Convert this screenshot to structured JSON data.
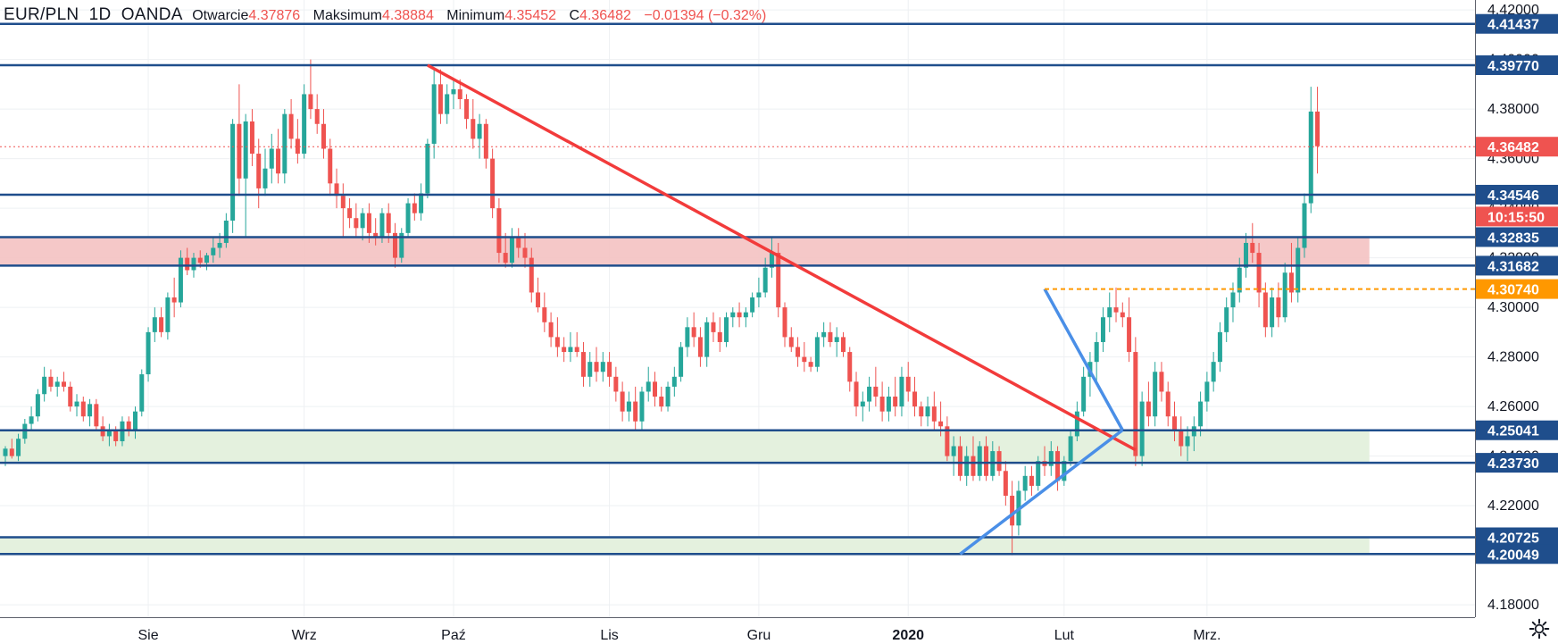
{
  "header": {
    "symbol": "EUR/PLN",
    "interval": "1D",
    "broker": "OANDA",
    "open_label": "Otwarcie",
    "open_value": "4.37876",
    "high_label": "Maksimum",
    "high_value": "4.38884",
    "low_label": "Minimum",
    "low_value": "4.35452",
    "close_label": "C",
    "close_value": "4.36482",
    "change_value": "−0.01394 (−0.32%)"
  },
  "colors": {
    "up": "#26a69a",
    "down": "#ef5350",
    "level_line": "#1f4e8c",
    "resistance_zone": "#f4c2c2",
    "support_zone": "#e3f0dc",
    "trend_red": "#f23b3b",
    "trend_blue": "#4a8fe7",
    "breakout_orange": "#ff9800"
  },
  "chart_data": {
    "type": "candlestick",
    "title": "",
    "ylim": [
      4.175,
      4.424
    ],
    "x_tick_labels": [
      "Sie",
      "Wrz",
      "Paź",
      "Lis",
      "Gru",
      "2020",
      "Lut",
      "Mrz."
    ],
    "y_tick_labels": [
      "4.42000",
      "4.40000",
      "4.38000",
      "4.36000",
      "4.34000",
      "4.32000",
      "4.30000",
      "4.28000",
      "4.26000",
      "4.24000",
      "4.22000",
      "4.20000",
      "4.18000"
    ],
    "y_ticks": [
      4.42,
      4.4,
      4.38,
      4.36,
      4.34,
      4.32,
      4.3,
      4.28,
      4.26,
      4.24,
      4.22,
      4.2,
      4.18
    ],
    "levels": [
      {
        "value": 4.41437,
        "label": "4.41437"
      },
      {
        "value": 4.3977,
        "label": "4.39770"
      },
      {
        "value": 4.34546,
        "label": "4.34546"
      },
      {
        "value": 4.32835,
        "label": "4.32835"
      },
      {
        "value": 4.31682,
        "label": "4.31682"
      },
      {
        "value": 4.25041,
        "label": "4.25041"
      },
      {
        "value": 4.2373,
        "label": "4.23730"
      },
      {
        "value": 4.20725,
        "label": "4.20725"
      },
      {
        "value": 4.20049,
        "label": "4.20049"
      }
    ],
    "breakout_level": {
      "value": 4.3074,
      "label": "4.30740"
    },
    "last_price": {
      "value": 4.36482,
      "label": "4.36482",
      "countdown": "10:15:50"
    },
    "zones": [
      {
        "type": "resistance",
        "from": 4.31682,
        "to": 4.32835
      },
      {
        "type": "support",
        "from": 4.2373,
        "to": 4.25041
      },
      {
        "type": "support",
        "from": 4.20049,
        "to": 4.20725
      }
    ],
    "candles": [
      [
        4.24,
        4.244,
        4.236,
        4.243
      ],
      [
        4.243,
        4.247,
        4.239,
        4.24
      ],
      [
        4.24,
        4.249,
        4.238,
        4.247
      ],
      [
        4.247,
        4.255,
        4.245,
        4.253
      ],
      [
        4.253,
        4.26,
        4.25,
        4.256
      ],
      [
        4.256,
        4.267,
        4.254,
        4.265
      ],
      [
        4.265,
        4.276,
        4.262,
        4.272
      ],
      [
        4.272,
        4.275,
        4.266,
        4.268
      ],
      [
        4.268,
        4.272,
        4.264,
        4.27
      ],
      [
        4.27,
        4.274,
        4.266,
        4.268
      ],
      [
        4.268,
        4.27,
        4.258,
        4.26
      ],
      [
        4.26,
        4.265,
        4.256,
        4.262
      ],
      [
        4.262,
        4.264,
        4.254,
        4.256
      ],
      [
        4.256,
        4.263,
        4.252,
        4.261
      ],
      [
        4.261,
        4.263,
        4.25,
        4.252
      ],
      [
        4.252,
        4.256,
        4.246,
        4.248
      ],
      [
        4.248,
        4.253,
        4.244,
        4.25
      ],
      [
        4.25,
        4.252,
        4.244,
        4.246
      ],
      [
        4.246,
        4.256,
        4.244,
        4.254
      ],
      [
        4.254,
        4.256,
        4.248,
        4.25
      ],
      [
        4.25,
        4.26,
        4.247,
        4.258
      ],
      [
        4.258,
        4.275,
        4.256,
        4.273
      ],
      [
        4.273,
        4.292,
        4.27,
        4.29
      ],
      [
        4.29,
        4.3,
        4.286,
        4.296
      ],
      [
        4.296,
        4.3,
        4.288,
        4.29
      ],
      [
        4.29,
        4.306,
        4.287,
        4.304
      ],
      [
        4.304,
        4.312,
        4.296,
        4.302
      ],
      [
        4.302,
        4.323,
        4.3,
        4.32
      ],
      [
        4.32,
        4.324,
        4.313,
        4.315
      ],
      [
        4.315,
        4.322,
        4.312,
        4.32
      ],
      [
        4.32,
        4.323,
        4.316,
        4.318
      ],
      [
        4.318,
        4.322,
        4.315,
        4.321
      ],
      [
        4.321,
        4.328,
        4.318,
        4.324
      ],
      [
        4.324,
        4.33,
        4.32,
        4.326
      ],
      [
        4.326,
        4.338,
        4.324,
        4.335
      ],
      [
        4.335,
        4.376,
        4.33,
        4.374
      ],
      [
        4.374,
        4.39,
        4.345,
        4.352
      ],
      [
        4.352,
        4.378,
        4.328,
        4.375
      ],
      [
        4.375,
        4.38,
        4.357,
        4.362
      ],
      [
        4.362,
        4.368,
        4.34,
        4.348
      ],
      [
        4.348,
        4.364,
        4.345,
        4.356
      ],
      [
        4.356,
        4.37,
        4.35,
        4.364
      ],
      [
        4.364,
        4.372,
        4.35,
        4.354
      ],
      [
        4.354,
        4.38,
        4.35,
        4.378
      ],
      [
        4.378,
        4.384,
        4.364,
        4.368
      ],
      [
        4.368,
        4.376,
        4.358,
        4.362
      ],
      [
        4.362,
        4.39,
        4.36,
        4.386
      ],
      [
        4.386,
        4.4,
        4.376,
        4.38
      ],
      [
        4.38,
        4.386,
        4.37,
        4.374
      ],
      [
        4.374,
        4.38,
        4.36,
        4.364
      ],
      [
        4.364,
        4.368,
        4.345,
        4.35
      ],
      [
        4.35,
        4.356,
        4.34,
        4.345
      ],
      [
        4.345,
        4.35,
        4.328,
        4.34
      ],
      [
        4.34,
        4.344,
        4.332,
        4.336
      ],
      [
        4.336,
        4.342,
        4.328,
        4.332
      ],
      [
        4.332,
        4.34,
        4.327,
        4.338
      ],
      [
        4.338,
        4.342,
        4.326,
        4.33
      ],
      [
        4.33,
        4.336,
        4.325,
        4.328
      ],
      [
        4.328,
        4.34,
        4.326,
        4.338
      ],
      [
        4.338,
        4.342,
        4.326,
        4.33
      ],
      [
        4.33,
        4.334,
        4.316,
        4.32
      ],
      [
        4.32,
        4.332,
        4.318,
        4.33
      ],
      [
        4.33,
        4.344,
        4.328,
        4.342
      ],
      [
        4.342,
        4.346,
        4.335,
        4.338
      ],
      [
        4.338,
        4.35,
        4.335,
        4.346
      ],
      [
        4.346,
        4.368,
        4.344,
        4.366
      ],
      [
        4.366,
        4.396,
        4.36,
        4.39
      ],
      [
        4.39,
        4.396,
        4.374,
        4.378
      ],
      [
        4.378,
        4.39,
        4.374,
        4.386
      ],
      [
        4.386,
        4.392,
        4.38,
        4.388
      ],
      [
        4.388,
        4.392,
        4.38,
        4.384
      ],
      [
        4.384,
        4.386,
        4.372,
        4.376
      ],
      [
        4.376,
        4.384,
        4.364,
        4.368
      ],
      [
        4.368,
        4.378,
        4.36,
        4.374
      ],
      [
        4.374,
        4.376,
        4.356,
        4.36
      ],
      [
        4.36,
        4.364,
        4.336,
        4.34
      ],
      [
        4.34,
        4.344,
        4.318,
        4.322
      ],
      [
        4.322,
        4.33,
        4.316,
        4.318
      ],
      [
        4.318,
        4.332,
        4.316,
        4.328
      ],
      [
        4.328,
        4.332,
        4.32,
        4.324
      ],
      [
        4.324,
        4.33,
        4.316,
        4.32
      ],
      [
        4.32,
        4.324,
        4.302,
        4.306
      ],
      [
        4.306,
        4.312,
        4.298,
        4.3
      ],
      [
        4.3,
        4.306,
        4.29,
        4.294
      ],
      [
        4.294,
        4.298,
        4.284,
        4.288
      ],
      [
        4.288,
        4.296,
        4.28,
        4.284
      ],
      [
        4.284,
        4.288,
        4.278,
        4.282
      ],
      [
        4.282,
        4.29,
        4.278,
        4.284
      ],
      [
        4.284,
        4.29,
        4.28,
        4.282
      ],
      [
        4.282,
        4.286,
        4.268,
        4.272
      ],
      [
        4.272,
        4.282,
        4.268,
        4.278
      ],
      [
        4.278,
        4.284,
        4.27,
        4.274
      ],
      [
        4.274,
        4.282,
        4.27,
        4.278
      ],
      [
        4.278,
        4.282,
        4.268,
        4.272
      ],
      [
        4.272,
        4.276,
        4.262,
        4.266
      ],
      [
        4.266,
        4.27,
        4.254,
        4.258
      ],
      [
        4.258,
        4.266,
        4.254,
        4.262
      ],
      [
        4.262,
        4.268,
        4.25,
        4.254
      ],
      [
        4.254,
        4.268,
        4.25,
        4.266
      ],
      [
        4.266,
        4.276,
        4.262,
        4.27
      ],
      [
        4.27,
        4.274,
        4.26,
        4.264
      ],
      [
        4.264,
        4.268,
        4.258,
        4.26
      ],
      [
        4.26,
        4.27,
        4.258,
        4.268
      ],
      [
        4.268,
        4.276,
        4.264,
        4.272
      ],
      [
        4.272,
        4.286,
        4.27,
        4.284
      ],
      [
        4.284,
        4.296,
        4.28,
        4.292
      ],
      [
        4.292,
        4.298,
        4.284,
        4.288
      ],
      [
        4.288,
        4.292,
        4.276,
        4.28
      ],
      [
        4.28,
        4.296,
        4.276,
        4.294
      ],
      [
        4.294,
        4.298,
        4.286,
        4.29
      ],
      [
        4.29,
        4.296,
        4.282,
        4.286
      ],
      [
        4.286,
        4.298,
        4.284,
        4.296
      ],
      [
        4.296,
        4.3,
        4.292,
        4.298
      ],
      [
        4.298,
        4.302,
        4.292,
        4.296
      ],
      [
        4.296,
        4.3,
        4.292,
        4.298
      ],
      [
        4.298,
        4.306,
        4.296,
        4.304
      ],
      [
        4.304,
        4.312,
        4.3,
        4.306
      ],
      [
        4.306,
        4.32,
        4.304,
        4.316
      ],
      [
        4.316,
        4.328,
        4.312,
        4.322
      ],
      [
        4.322,
        4.326,
        4.296,
        4.3
      ],
      [
        4.3,
        4.302,
        4.284,
        4.288
      ],
      [
        4.288,
        4.292,
        4.282,
        4.284
      ],
      [
        4.284,
        4.288,
        4.276,
        4.28
      ],
      [
        4.28,
        4.286,
        4.274,
        4.278
      ],
      [
        4.278,
        4.28,
        4.274,
        4.276
      ],
      [
        4.276,
        4.29,
        4.274,
        4.288
      ],
      [
        4.288,
        4.294,
        4.284,
        4.29
      ],
      [
        4.29,
        4.294,
        4.284,
        4.286
      ],
      [
        4.286,
        4.292,
        4.28,
        4.288
      ],
      [
        4.288,
        4.29,
        4.28,
        4.282
      ],
      [
        4.282,
        4.284,
        4.266,
        4.27
      ],
      [
        4.27,
        4.274,
        4.256,
        4.26
      ],
      [
        4.26,
        4.266,
        4.254,
        4.262
      ],
      [
        4.262,
        4.272,
        4.258,
        4.268
      ],
      [
        4.268,
        4.276,
        4.26,
        4.264
      ],
      [
        4.264,
        4.27,
        4.254,
        4.258
      ],
      [
        4.258,
        4.268,
        4.254,
        4.264
      ],
      [
        4.264,
        4.272,
        4.256,
        4.26
      ],
      [
        4.26,
        4.276,
        4.256,
        4.272
      ],
      [
        4.272,
        4.278,
        4.262,
        4.266
      ],
      [
        4.266,
        4.272,
        4.256,
        4.26
      ],
      [
        4.26,
        4.262,
        4.252,
        4.256
      ],
      [
        4.256,
        4.264,
        4.252,
        4.26
      ],
      [
        4.26,
        4.266,
        4.25,
        4.254
      ],
      [
        4.254,
        4.262,
        4.248,
        4.252
      ],
      [
        4.252,
        4.256,
        4.238,
        4.24
      ],
      [
        4.24,
        4.248,
        4.232,
        4.244
      ],
      [
        4.244,
        4.248,
        4.23,
        4.232
      ],
      [
        4.232,
        4.244,
        4.228,
        4.24
      ],
      [
        4.24,
        4.248,
        4.23,
        4.232
      ],
      [
        4.232,
        4.246,
        4.23,
        4.244
      ],
      [
        4.244,
        4.248,
        4.23,
        4.232
      ],
      [
        4.232,
        4.246,
        4.23,
        4.242
      ],
      [
        4.242,
        4.244,
        4.232,
        4.234
      ],
      [
        4.234,
        4.238,
        4.22,
        4.224
      ],
      [
        4.224,
        4.23,
        4.2,
        4.212
      ],
      [
        4.212,
        4.23,
        4.208,
        4.226
      ],
      [
        4.226,
        4.236,
        4.222,
        4.232
      ],
      [
        4.232,
        4.236,
        4.224,
        4.228
      ],
      [
        4.228,
        4.24,
        4.226,
        4.238
      ],
      [
        4.238,
        4.244,
        4.232,
        4.236
      ],
      [
        4.236,
        4.246,
        4.232,
        4.242
      ],
      [
        4.242,
        4.244,
        4.226,
        4.23
      ],
      [
        4.23,
        4.24,
        4.228,
        4.238
      ],
      [
        4.238,
        4.25,
        4.236,
        4.248
      ],
      [
        4.248,
        4.262,
        4.246,
        4.258
      ],
      [
        4.258,
        4.276,
        4.256,
        4.272
      ],
      [
        4.272,
        4.282,
        4.264,
        4.278
      ],
      [
        4.278,
        4.29,
        4.27,
        4.286
      ],
      [
        4.286,
        4.3,
        4.282,
        4.296
      ],
      [
        4.296,
        4.306,
        4.29,
        4.3
      ],
      [
        4.3,
        4.308,
        4.294,
        4.298
      ],
      [
        4.298,
        4.302,
        4.292,
        4.296
      ],
      [
        4.296,
        4.304,
        4.278,
        4.282
      ],
      [
        4.282,
        4.288,
        4.236,
        4.24
      ],
      [
        4.24,
        4.266,
        4.236,
        4.262
      ],
      [
        4.262,
        4.27,
        4.252,
        4.256
      ],
      [
        4.256,
        4.278,
        4.252,
        4.274
      ],
      [
        4.274,
        4.278,
        4.262,
        4.266
      ],
      [
        4.266,
        4.27,
        4.252,
        4.256
      ],
      [
        4.256,
        4.262,
        4.246,
        4.25
      ],
      [
        4.25,
        4.256,
        4.24,
        4.244
      ],
      [
        4.244,
        4.252,
        4.238,
        4.248
      ],
      [
        4.248,
        4.256,
        4.242,
        4.252
      ],
      [
        4.252,
        4.266,
        4.248,
        4.262
      ],
      [
        4.262,
        4.274,
        4.258,
        4.27
      ],
      [
        4.27,
        4.282,
        4.266,
        4.278
      ],
      [
        4.278,
        4.294,
        4.274,
        4.29
      ],
      [
        4.29,
        4.304,
        4.286,
        4.3
      ],
      [
        4.3,
        4.31,
        4.294,
        4.306
      ],
      [
        4.306,
        4.32,
        4.302,
        4.316
      ],
      [
        4.316,
        4.33,
        4.312,
        4.326
      ],
      [
        4.326,
        4.334,
        4.318,
        4.322
      ],
      [
        4.322,
        4.326,
        4.3,
        4.306
      ],
      [
        4.306,
        4.31,
        4.288,
        4.292
      ],
      [
        4.292,
        4.308,
        4.288,
        4.304
      ],
      [
        4.304,
        4.31,
        4.292,
        4.296
      ],
      [
        4.296,
        4.318,
        4.294,
        4.314
      ],
      [
        4.314,
        4.326,
        4.302,
        4.306
      ],
      [
        4.306,
        4.328,
        4.302,
        4.324
      ],
      [
        4.324,
        4.346,
        4.32,
        4.342
      ],
      [
        4.342,
        4.389,
        4.338,
        4.379
      ],
      [
        4.379,
        4.389,
        4.354,
        4.365
      ]
    ]
  }
}
